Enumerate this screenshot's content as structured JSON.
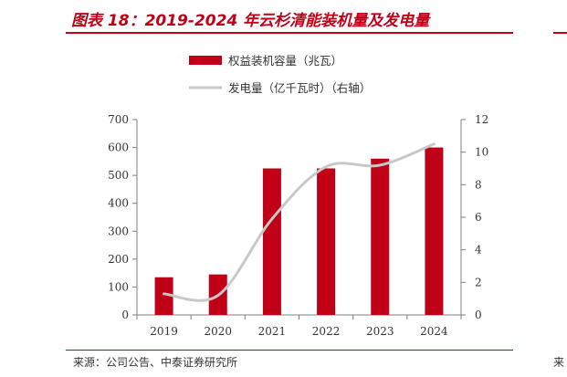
{
  "figure": {
    "title": "图表 18：2019-2024 年云杉清能装机量及发电量",
    "source": "来源：公司公告、中泰证券研究所"
  },
  "colors": {
    "accent": "#c00017",
    "bar": "#c00017",
    "line": "#c8c8c8",
    "axis": "#7f7f7f"
  },
  "chart_data": {
    "type": "bar",
    "categories": [
      "2019",
      "2020",
      "2021",
      "2022",
      "2023",
      "2024"
    ],
    "series": [
      {
        "name": "权益装机容量（兆瓦）",
        "type": "bar",
        "axis": "left",
        "values": [
          135,
          145,
          525,
          525,
          560,
          600
        ]
      },
      {
        "name": "发电量（亿千瓦时）（右轴）",
        "type": "line",
        "axis": "right",
        "values": [
          1.3,
          1.2,
          5.9,
          9.1,
          9.2,
          10.5
        ]
      }
    ],
    "y_left": {
      "min": 0,
      "max": 700,
      "ticks": [
        0,
        100,
        200,
        300,
        400,
        500,
        600,
        700
      ]
    },
    "y_right": {
      "min": 0,
      "max": 12,
      "ticks": [
        0,
        2,
        4,
        6,
        8,
        10,
        12
      ]
    },
    "legend_position": "top",
    "grid": false
  }
}
